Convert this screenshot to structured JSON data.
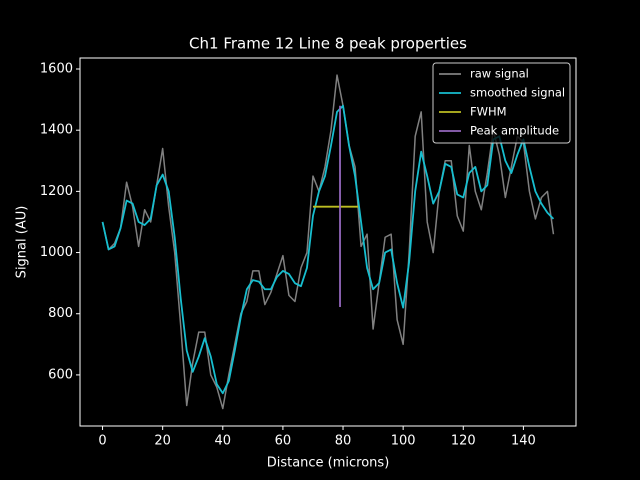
{
  "chart_data": {
    "type": "line",
    "title": "Ch1 Frame 12 Line 8 peak properties",
    "x_label": "Distance (microns)",
    "y_label": "Signal (AU)",
    "x": [
      0,
      2,
      4,
      6,
      8,
      10,
      12,
      14,
      16,
      18,
      20,
      22,
      24,
      26,
      28,
      30,
      32,
      34,
      36,
      38,
      40,
      42,
      44,
      46,
      48,
      50,
      52,
      54,
      56,
      58,
      60,
      62,
      64,
      66,
      68,
      70,
      72,
      74,
      76,
      78,
      80,
      82,
      84,
      86,
      88,
      90,
      92,
      94,
      96,
      98,
      100,
      102,
      104,
      106,
      108,
      110,
      112,
      114,
      116,
      118,
      120,
      122,
      124,
      126,
      128,
      130,
      132,
      134,
      136,
      138,
      140,
      142,
      144,
      146,
      148,
      150
    ],
    "series": [
      {
        "name": "raw signal",
        "color": "#808080",
        "values": [
          1100,
          1010,
          1030,
          1080,
          1230,
          1150,
          1020,
          1140,
          1100,
          1220,
          1340,
          1150,
          1000,
          760,
          500,
          640,
          740,
          740,
          600,
          560,
          490,
          600,
          700,
          800,
          840,
          940,
          940,
          830,
          870,
          930,
          990,
          860,
          840,
          950,
          1000,
          1250,
          1200,
          1280,
          1400,
          1580,
          1480,
          1350,
          1280,
          1020,
          1060,
          750,
          900,
          1050,
          1060,
          780,
          700,
          1000,
          1380,
          1460,
          1100,
          1000,
          1200,
          1300,
          1300,
          1120,
          1070,
          1350,
          1200,
          1140,
          1260,
          1400,
          1320,
          1180,
          1280,
          1380,
          1360,
          1200,
          1110,
          1180,
          1200,
          1060
        ]
      },
      {
        "name": "smoothed signal",
        "color": "#17becf",
        "values": [
          1100,
          1010,
          1020,
          1080,
          1170,
          1160,
          1100,
          1090,
          1110,
          1220,
          1255,
          1200,
          1050,
          850,
          680,
          610,
          660,
          720,
          660,
          570,
          540,
          580,
          680,
          790,
          880,
          910,
          905,
          880,
          880,
          920,
          940,
          930,
          900,
          890,
          950,
          1120,
          1200,
          1250,
          1350,
          1460,
          1480,
          1350,
          1250,
          1100,
          950,
          880,
          900,
          1000,
          1010,
          900,
          820,
          970,
          1200,
          1330,
          1250,
          1160,
          1200,
          1290,
          1280,
          1190,
          1180,
          1260,
          1280,
          1200,
          1220,
          1370,
          1380,
          1300,
          1260,
          1320,
          1370,
          1280,
          1200,
          1160,
          1130,
          1110
        ]
      },
      {
        "name": "FWHM",
        "color": "#bcbd22",
        "x": [
          70,
          85
        ],
        "values": [
          1150,
          1150
        ]
      },
      {
        "name": "Peak amplitude",
        "color": "#9467bd",
        "x": [
          79,
          79
        ],
        "values": [
          822,
          1480
        ]
      }
    ],
    "xlim": [
      -7.5,
      157.5
    ],
    "ylim": [
      433,
      1636
    ],
    "xticks": [
      0,
      20,
      40,
      60,
      80,
      100,
      120,
      140
    ],
    "yticks": [
      600,
      800,
      1000,
      1200,
      1400,
      1600
    ],
    "legend": "upper right"
  }
}
